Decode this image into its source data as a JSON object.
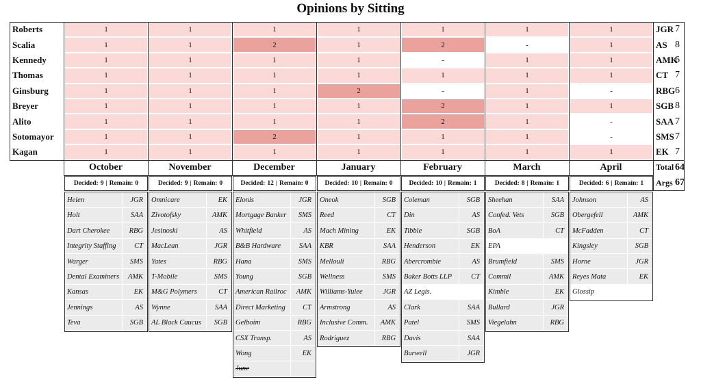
{
  "title": "Opinions by Sitting",
  "months": [
    "October",
    "November",
    "December",
    "January",
    "February",
    "March",
    "April"
  ],
  "justices": [
    {
      "name": "Roberts",
      "cells": [
        1,
        1,
        1,
        1,
        1,
        1,
        1
      ],
      "abbr": "JGR",
      "count": 7
    },
    {
      "name": "Scalia",
      "cells": [
        1,
        1,
        2,
        1,
        2,
        "-",
        1
      ],
      "abbr": "AS",
      "count": 8
    },
    {
      "name": "Kennedy",
      "cells": [
        1,
        1,
        1,
        1,
        "-",
        1,
        1
      ],
      "abbr": "AMK",
      "count": 6
    },
    {
      "name": "Thomas",
      "cells": [
        1,
        1,
        1,
        1,
        1,
        1,
        1
      ],
      "abbr": "CT",
      "count": 7
    },
    {
      "name": "Ginsburg",
      "cells": [
        1,
        1,
        1,
        2,
        "-",
        1,
        "-"
      ],
      "abbr": "RBG",
      "count": 6
    },
    {
      "name": "Breyer",
      "cells": [
        1,
        1,
        1,
        1,
        2,
        1,
        1
      ],
      "abbr": "SGB",
      "count": 8
    },
    {
      "name": "Alito",
      "cells": [
        1,
        1,
        1,
        1,
        2,
        1,
        "-"
      ],
      "abbr": "SAA",
      "count": 7
    },
    {
      "name": "Sotomayor",
      "cells": [
        1,
        1,
        2,
        1,
        1,
        1,
        "-"
      ],
      "abbr": "SMS",
      "count": 7
    },
    {
      "name": "Kagan",
      "cells": [
        1,
        1,
        1,
        1,
        1,
        1,
        1
      ],
      "abbr": "EK",
      "count": 7
    }
  ],
  "total_label": "Total",
  "total": 64,
  "args_label": "Args",
  "args": 67,
  "decided_label": "Decided:",
  "remain_label": "Remain:",
  "separator": "|",
  "sittings": [
    {
      "decided": 9,
      "remain": 0,
      "cases": [
        {
          "name": "Heien",
          "author": "JGR"
        },
        {
          "name": "Holt",
          "author": "SAA"
        },
        {
          "name": "Dart Cherokee",
          "author": "RBG"
        },
        {
          "name": "Integrity Staffing",
          "author": "CT"
        },
        {
          "name": "Warger",
          "author": "SMS"
        },
        {
          "name": "Dental Examiners",
          "author": "AMK"
        },
        {
          "name": "Kansas",
          "author": "EK"
        },
        {
          "name": "Jennings",
          "author": "AS"
        },
        {
          "name": "Teva",
          "author": "SGB"
        }
      ]
    },
    {
      "decided": 9,
      "remain": 0,
      "cases": [
        {
          "name": "Omnicare",
          "author": "EK"
        },
        {
          "name": "Zivotofsky",
          "author": "AMK"
        },
        {
          "name": "Jesinoski",
          "author": "AS"
        },
        {
          "name": "MacLean",
          "author": "JGR"
        },
        {
          "name": "Yates",
          "author": "RBG"
        },
        {
          "name": "T-Mobile",
          "author": "SMS"
        },
        {
          "name": "M&G Polymers",
          "author": "CT"
        },
        {
          "name": "Wynne",
          "author": "SAA"
        },
        {
          "name": "AL Black Caucus",
          "author": "SGB"
        }
      ]
    },
    {
      "decided": 12,
      "remain": 0,
      "cases": [
        {
          "name": "Elonis",
          "author": "JGR"
        },
        {
          "name": "Mortgage Banker",
          "author": "SMS"
        },
        {
          "name": "Whitfield",
          "author": "AS"
        },
        {
          "name": "B&B Hardware",
          "author": "SAA"
        },
        {
          "name": "Hana",
          "author": "SMS"
        },
        {
          "name": "Young",
          "author": "SGB"
        },
        {
          "name": "American Railroc",
          "author": "AMK"
        },
        {
          "name": "Direct Marketing",
          "author": "CT"
        },
        {
          "name": "Gelboim",
          "author": "RBG"
        },
        {
          "name": "CSX Transp.",
          "author": "AS"
        },
        {
          "name": "Wong",
          "author": "EK"
        },
        {
          "name": "June",
          "author": null,
          "strike": true
        }
      ]
    },
    {
      "decided": 10,
      "remain": 0,
      "cases": [
        {
          "name": "Oneok",
          "author": "SGB"
        },
        {
          "name": "Reed",
          "author": "CT"
        },
        {
          "name": "Mach Mining",
          "author": "EK"
        },
        {
          "name": "KBR",
          "author": "SAA"
        },
        {
          "name": "Mellouli",
          "author": "RBG"
        },
        {
          "name": "Wellness",
          "author": "SMS"
        },
        {
          "name": "Williams-Yulee",
          "author": "JGR"
        },
        {
          "name": "Armstrong",
          "author": "AS"
        },
        {
          "name": "Inclusive Comm.",
          "author": "AMK"
        },
        {
          "name": "Rodriguez",
          "author": "RBG"
        }
      ]
    },
    {
      "decided": 10,
      "remain": 1,
      "cases": [
        {
          "name": "Coleman",
          "author": "SGB"
        },
        {
          "name": "Din",
          "author": "AS"
        },
        {
          "name": "Tibble",
          "author": "SGB"
        },
        {
          "name": "Henderson",
          "author": "EK"
        },
        {
          "name": "Abercrombie",
          "author": "AS"
        },
        {
          "name": "Baker Botts LLP",
          "author": "CT"
        },
        {
          "name": "AZ Legis.",
          "author": null
        },
        {
          "name": "Clark",
          "author": "SAA"
        },
        {
          "name": "Patel",
          "author": "SMS"
        },
        {
          "name": "Davis",
          "author": "SAA"
        },
        {
          "name": "Burwell",
          "author": "JGR"
        }
      ]
    },
    {
      "decided": 8,
      "remain": 1,
      "cases": [
        {
          "name": "Sheehan",
          "author": "SAA"
        },
        {
          "name": "Confed. Vets",
          "author": "SGB"
        },
        {
          "name": "BoA",
          "author": "CT"
        },
        {
          "name": "EPA",
          "author": null
        },
        {
          "name": "Brumfield",
          "author": "SMS"
        },
        {
          "name": "Commil",
          "author": "AMK"
        },
        {
          "name": "Kimble",
          "author": "EK"
        },
        {
          "name": "Bullard",
          "author": "JGR"
        },
        {
          "name": "Viegelahn",
          "author": "RBG"
        }
      ]
    },
    {
      "decided": 6,
      "remain": 1,
      "cases": [
        {
          "name": "Johnson",
          "author": "AS"
        },
        {
          "name": "Obergefell",
          "author": "AMK"
        },
        {
          "name": "McFadden",
          "author": "CT"
        },
        {
          "name": "Kingsley",
          "author": "SGB"
        },
        {
          "name": "Horne",
          "author": "JGR"
        },
        {
          "name": "Reyes Mata",
          "author": "EK"
        },
        {
          "name": "Glossip",
          "author": null
        }
      ]
    }
  ]
}
